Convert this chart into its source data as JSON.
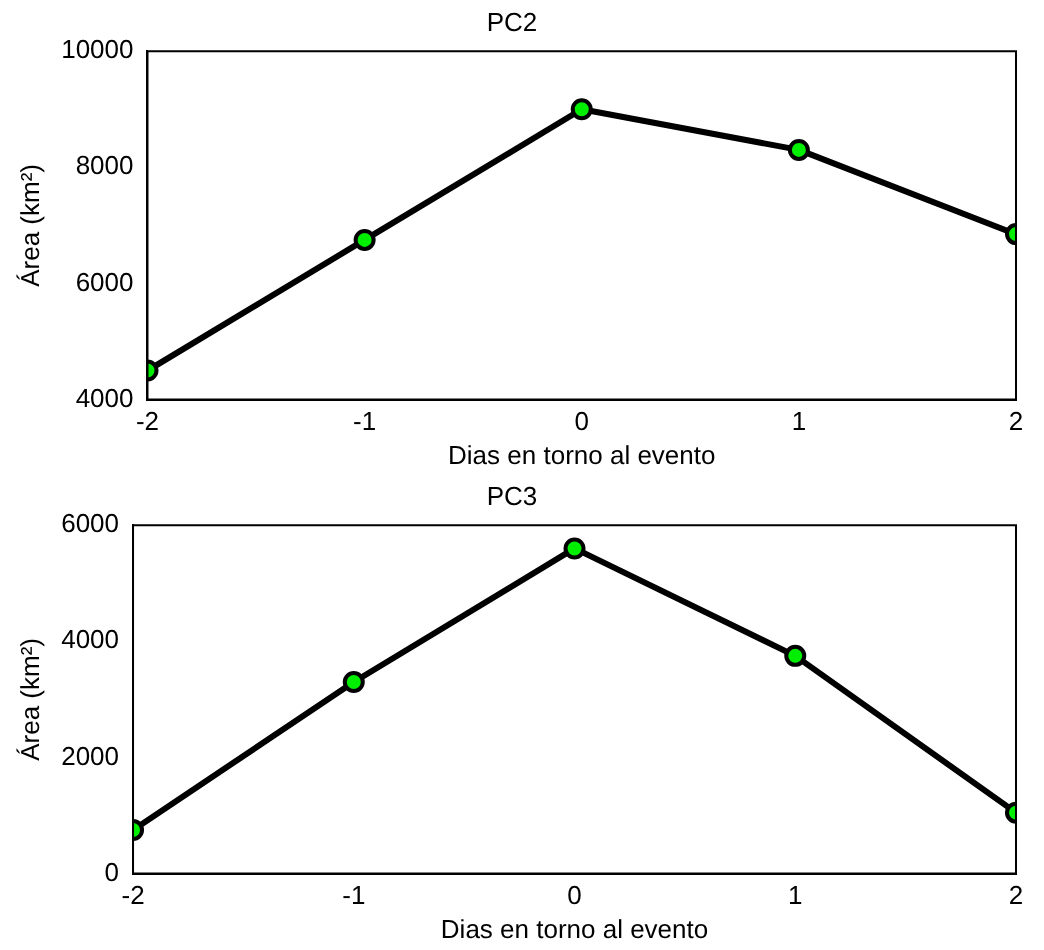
{
  "chart_data": [
    {
      "type": "line",
      "title": "PC2",
      "xlabel": "Dias en torno al evento",
      "ylabel": "Área (km²)",
      "x": [
        -2,
        -1,
        0,
        1,
        2
      ],
      "xlim": [
        -2,
        2
      ],
      "xticks": [
        -2,
        -1,
        0,
        1,
        2
      ],
      "ylim": [
        4000,
        10000
      ],
      "yticks": [
        4000,
        6000,
        8000,
        10000
      ],
      "grid": false,
      "legend": false,
      "marker": "circle",
      "line_style": "solid",
      "series": [
        {
          "color": "#000000",
          "values": [
            4500,
            6750,
            9000,
            8300,
            6850
          ]
        }
      ]
    },
    {
      "type": "line",
      "title": "PC3",
      "xlabel": "Dias en torno al evento",
      "ylabel": "Área (km²)",
      "x": [
        -2,
        -1,
        0,
        1,
        2
      ],
      "xlim": [
        -2,
        2
      ],
      "xticks": [
        -2,
        -1,
        0,
        1,
        2
      ],
      "ylim": [
        0,
        6000
      ],
      "yticks": [
        0,
        2000,
        4000,
        6000
      ],
      "grid": false,
      "legend": false,
      "marker": "circle",
      "line_style": "solid",
      "series": [
        {
          "color": "#000000",
          "values": [
            750,
            3300,
            5600,
            3750,
            1050
          ]
        }
      ]
    }
  ]
}
